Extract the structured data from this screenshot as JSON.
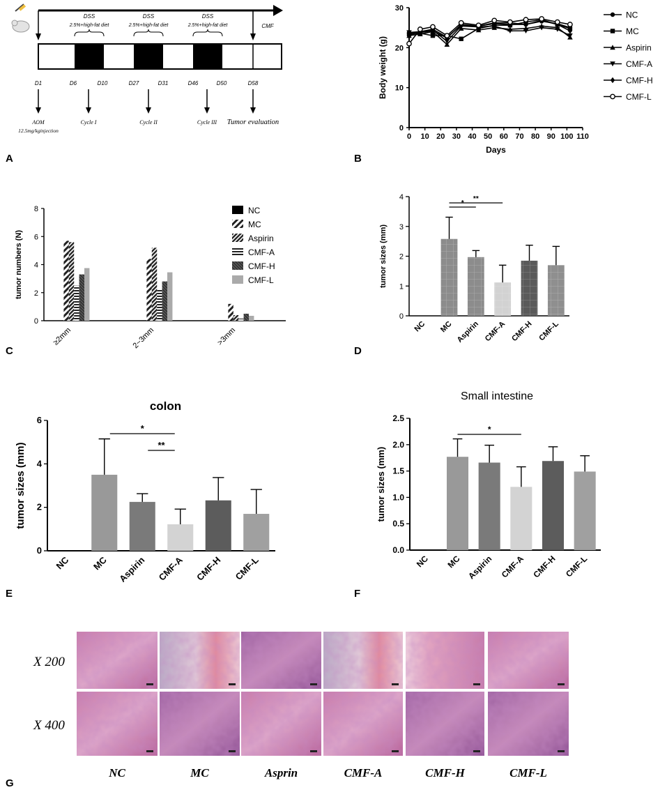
{
  "panel_labels": {
    "a": "A",
    "b": "B",
    "c": "C",
    "d": "D",
    "e": "E",
    "f": "F",
    "g": "G"
  },
  "timeline": {
    "dss_label": "DSS",
    "diet_label": "2.5%+high-fat diet",
    "cmf_label": "CMF",
    "days": [
      "D1",
      "D6",
      "D10",
      "D27",
      "D31",
      "D46",
      "D50",
      "D58"
    ],
    "events": [
      {
        "line1": "AOM",
        "line2": "12.5mg/kginjection"
      },
      {
        "line1": "Cycle I",
        "line2": ""
      },
      {
        "line1": "Cycle II",
        "line2": ""
      },
      {
        "line1": "Cycle III",
        "line2": ""
      },
      {
        "line1": "Tumor evaluation",
        "line2": ""
      }
    ]
  },
  "chart_data": [
    {
      "panel": "B",
      "type": "line",
      "xlabel": "Days",
      "ylabel": "Body weight (g)",
      "xlim": [
        0,
        110
      ],
      "ylim": [
        0,
        30
      ],
      "xticks": [
        0,
        10,
        20,
        30,
        40,
        50,
        60,
        70,
        80,
        90,
        100,
        110
      ],
      "yticks": [
        0,
        10,
        20,
        30
      ],
      "legend_position": "right",
      "x": [
        0,
        7,
        15,
        24,
        33,
        44,
        54,
        64,
        74,
        84,
        94,
        102
      ],
      "series": [
        {
          "name": "NC",
          "marker": "circle",
          "values": [
            23.6,
            24.0,
            24.6,
            22.6,
            25.6,
            25.4,
            26.0,
            25.8,
            25.8,
            26.6,
            26.0,
            25.0
          ]
        },
        {
          "name": "MC",
          "marker": "square",
          "values": [
            23.4,
            23.6,
            23.0,
            23.0,
            22.2,
            24.8,
            25.6,
            25.6,
            26.4,
            27.0,
            25.8,
            24.8
          ]
        },
        {
          "name": "Aspirin",
          "marker": "triangle-up",
          "values": [
            23.0,
            23.4,
            24.0,
            20.8,
            24.8,
            24.4,
            25.0,
            24.6,
            24.8,
            25.4,
            25.0,
            22.6
          ]
        },
        {
          "name": "CMF-A",
          "marker": "triangle-down",
          "values": [
            23.8,
            24.0,
            24.4,
            21.6,
            25.4,
            25.2,
            25.4,
            24.2,
            24.2,
            25.0,
            24.6,
            23.0
          ]
        },
        {
          "name": "CMF-H",
          "marker": "diamond",
          "values": [
            23.2,
            23.8,
            24.2,
            22.4,
            25.8,
            25.4,
            26.2,
            26.2,
            25.8,
            26.8,
            25.8,
            24.2
          ]
        },
        {
          "name": "CMF-L",
          "marker": "circle-open",
          "values": [
            21.0,
            24.6,
            25.2,
            23.0,
            26.2,
            25.6,
            26.8,
            26.4,
            27.0,
            27.2,
            26.4,
            25.8
          ]
        }
      ]
    },
    {
      "panel": "C",
      "type": "bar",
      "ylabel": "tumor numbers (N)",
      "ylim": [
        0,
        8
      ],
      "yticks": [
        0,
        2,
        4,
        6,
        8
      ],
      "categories": [
        "≥2mm",
        "2~3mm",
        ">3mm"
      ],
      "legend_position": "top-right",
      "series": [
        {
          "name": "NC",
          "values": [
            0,
            0,
            0
          ],
          "color": "#000000",
          "pattern": "solid"
        },
        {
          "name": "MC",
          "values": [
            5.7,
            4.4,
            1.2
          ],
          "color": "#222222",
          "pattern": "diag-wide"
        },
        {
          "name": "Aspirin",
          "values": [
            5.6,
            5.2,
            0.4
          ],
          "color": "#222222",
          "pattern": "diag-dense"
        },
        {
          "name": "CMF-A",
          "values": [
            2.5,
            2.2,
            0.15
          ],
          "color": "#222222",
          "pattern": "horizontal"
        },
        {
          "name": "CMF-H",
          "values": [
            3.3,
            2.8,
            0.5
          ],
          "color": "#222222",
          "pattern": "diag-fine"
        },
        {
          "name": "CMF-L",
          "values": [
            3.75,
            3.45,
            0.35
          ],
          "color": "#aaaaaa",
          "pattern": "solid"
        }
      ]
    },
    {
      "panel": "D",
      "type": "bar",
      "ylabel": "tumor sizes (mm)",
      "ylim": [
        0,
        4
      ],
      "yticks": [
        0,
        1,
        2,
        3,
        4
      ],
      "categories": [
        "NC",
        "MC",
        "Aspirin",
        "CMF-A",
        "CMF-H",
        "CMF-L"
      ],
      "values": [
        0,
        2.58,
        1.97,
        1.12,
        1.85,
        1.7
      ],
      "errors": [
        0,
        0.73,
        0.22,
        0.58,
        0.52,
        0.63
      ],
      "colors": [
        "#888888",
        "#8c8c8c",
        "#8c8c8c",
        "#d2d2d2",
        "#5a5a5a",
        "#8f8f8f"
      ],
      "significance": [
        {
          "from": 1,
          "to": 2,
          "label": "*"
        },
        {
          "from": 1,
          "to": 3,
          "label": "**"
        }
      ]
    },
    {
      "panel": "E",
      "type": "bar",
      "title": "colon",
      "ylabel": "tumor sizes (mm)",
      "ylim": [
        0,
        6
      ],
      "yticks": [
        0,
        2,
        4,
        6
      ],
      "categories": [
        "NC",
        "MC",
        "Aspirin",
        "CMF-A",
        "CMF-H",
        "CMF-L"
      ],
      "values": [
        0,
        3.5,
        2.25,
        1.22,
        2.32,
        1.7
      ],
      "errors": [
        0,
        1.65,
        0.38,
        0.7,
        1.05,
        1.12
      ],
      "colors": [
        "#999999",
        "#999999",
        "#7a7a7a",
        "#d3d3d3",
        "#5c5c5c",
        "#a0a0a0"
      ],
      "significance": [
        {
          "from": 1,
          "to": 3,
          "label": "*"
        },
        {
          "from": 2,
          "to": 3,
          "label": "**"
        }
      ]
    },
    {
      "panel": "F",
      "type": "bar",
      "title": "Small intestine",
      "ylabel": "tumor sizes (mm)",
      "ylim": [
        0,
        2.5
      ],
      "yticks": [
        "0.0",
        "0.5",
        "1.0",
        "1.5",
        "2.0",
        "2.5"
      ],
      "categories": [
        "NC",
        "MC",
        "Aspirin",
        "CMF-A",
        "CMF-H",
        "CMF-L"
      ],
      "values": [
        0,
        1.77,
        1.66,
        1.2,
        1.69,
        1.49
      ],
      "errors": [
        0,
        0.34,
        0.33,
        0.38,
        0.27,
        0.3
      ],
      "colors": [
        "#999999",
        "#999999",
        "#7a7a7a",
        "#d3d3d3",
        "#5c5c5c",
        "#a0a0a0"
      ],
      "significance": [
        {
          "from": 1,
          "to": 3,
          "label": "*"
        }
      ]
    }
  ],
  "histology": {
    "row_labels": [
      "X 200",
      "X 400"
    ],
    "col_labels": [
      "NC",
      "MC",
      "Asprin",
      "CMF-A",
      "CMF-H",
      "CMF-L"
    ]
  }
}
